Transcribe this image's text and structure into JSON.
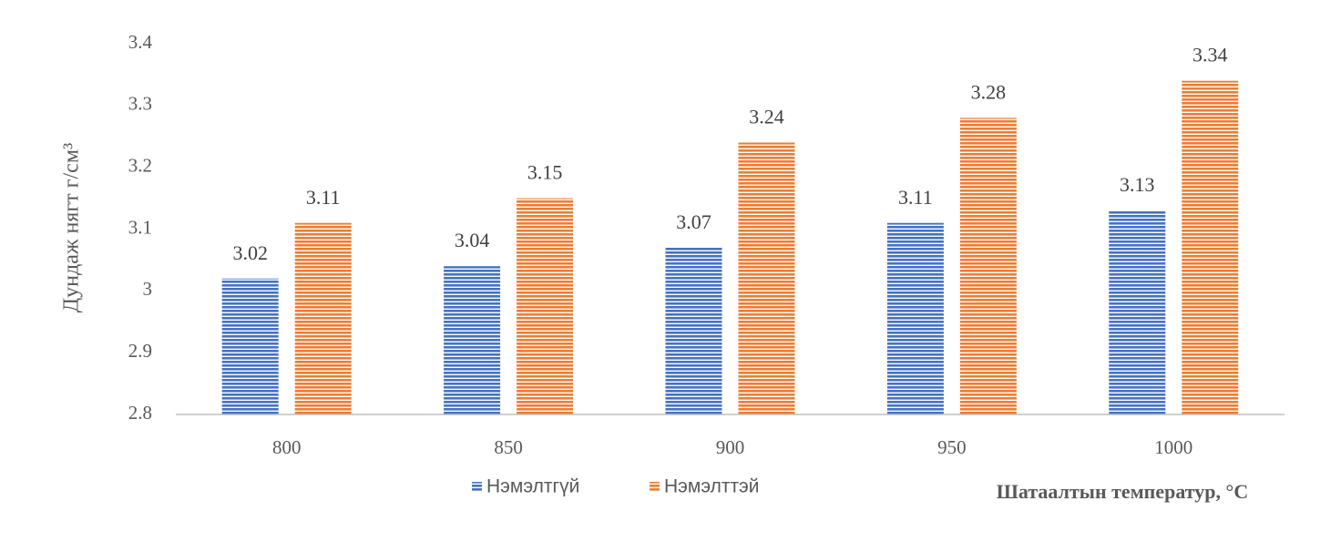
{
  "chart_data": {
    "type": "bar",
    "x_label": "Шатаалтын температур, °C",
    "y_label": "Дундаж нягт г/см³",
    "categories": [
      "800",
      "850",
      "900",
      "950",
      "1000"
    ],
    "series": [
      {
        "name": "Нэмэлтгүй",
        "color": "#4472c4",
        "values": [
          3.02,
          3.04,
          3.07,
          3.11,
          3.13
        ]
      },
      {
        "name": "Нэмэлттэй",
        "color": "#ed7d31",
        "values": [
          3.11,
          3.15,
          3.24,
          3.28,
          3.34
        ]
      }
    ],
    "ylim": [
      2.8,
      3.4
    ],
    "yticks": [
      2.8,
      2.9,
      3,
      3.1,
      3.2,
      3.3,
      3.4
    ],
    "grid": false,
    "legend": "bottom"
  }
}
